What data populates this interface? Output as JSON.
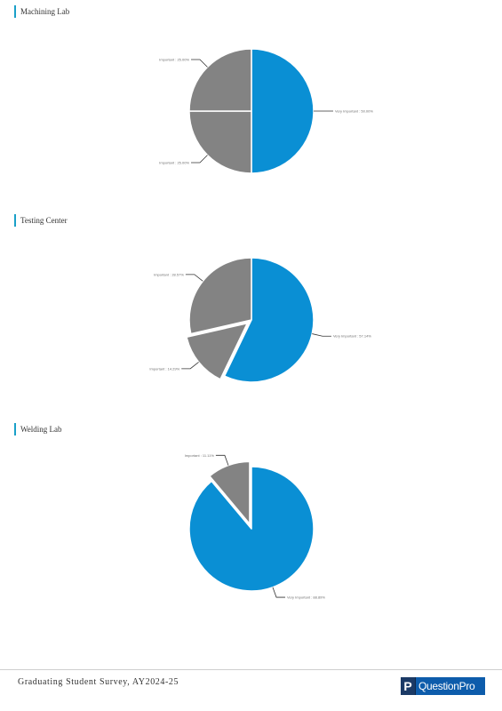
{
  "colors": {
    "primary": "#0a8fd4",
    "secondary": "#838383",
    "accent_bar": "#1aa0c8"
  },
  "chart_data": [
    {
      "type": "pie",
      "title": "Machining Lab",
      "slices": [
        {
          "label": "Very Important : 50.00%",
          "value": 50.0,
          "color": "#0a8fd4",
          "exploded": false
        },
        {
          "label": "Important : 25.00%",
          "value": 25.0,
          "color": "#838383",
          "exploded": false
        },
        {
          "label": "Important : 25.00%",
          "value": 25.0,
          "color": "#838383",
          "exploded": false
        }
      ]
    },
    {
      "type": "pie",
      "title": "Testing Center",
      "slices": [
        {
          "label": "Very Important : 57.14%",
          "value": 57.14,
          "color": "#0a8fd4",
          "exploded": false
        },
        {
          "label": "Important : 14.29%",
          "value": 14.29,
          "color": "#838383",
          "exploded": true
        },
        {
          "label": "Important : 28.57%",
          "value": 28.57,
          "color": "#838383",
          "exploded": false
        }
      ]
    },
    {
      "type": "pie",
      "title": "Welding Lab",
      "slices": [
        {
          "label": "Very Important : 88.89%",
          "value": 88.89,
          "color": "#0a8fd4",
          "exploded": false
        },
        {
          "label": "Important : 11.11%",
          "value": 11.11,
          "color": "#838383",
          "exploded": true
        }
      ]
    }
  ],
  "footer": {
    "text": "Graduating Student Survey, AY2024-25",
    "brand_mark": "P",
    "brand_name": "QuestionPro"
  }
}
